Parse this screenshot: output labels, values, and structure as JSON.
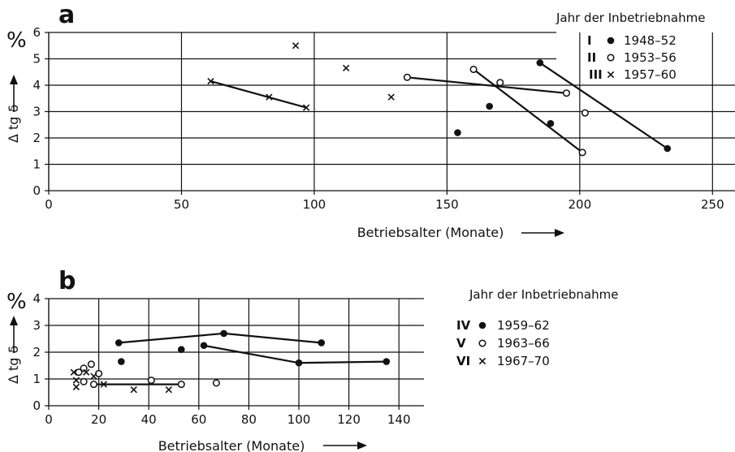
{
  "chart_data": [
    {
      "type": "scatter",
      "panel_label": "a",
      "xlabel": "Betriebsalter (Monate)",
      "ylabel": "Δ tg δ",
      "y_unit": "%",
      "xlim": [
        0,
        260
      ],
      "ylim": [
        0,
        6
      ],
      "x_ticks": [
        "0",
        "50",
        "100",
        "150",
        "200",
        "250"
      ],
      "y_ticks": [
        "0",
        "1",
        "2",
        "3",
        "4",
        "5",
        "6"
      ],
      "grid": true,
      "legend_title": "Jahr der Inbetriebnahme",
      "legend_position": "top-right",
      "series": [
        {
          "numeral": "I",
          "name": "1948–52",
          "marker": "filled-circle",
          "points": [
            [
              154,
              2.2
            ],
            [
              166,
              3.2
            ],
            [
              185,
              4.85
            ],
            [
              189,
              2.55
            ],
            [
              233,
              1.6
            ]
          ],
          "trend_lines": [
            [
              [
                185,
                4.85
              ],
              [
                233,
                1.6
              ]
            ]
          ]
        },
        {
          "numeral": "II",
          "name": "1953–56",
          "marker": "open-circle",
          "points": [
            [
              135,
              4.3
            ],
            [
              160,
              4.6
            ],
            [
              170,
              4.1
            ],
            [
              195,
              3.7
            ],
            [
              201,
              1.45
            ],
            [
              202,
              2.95
            ]
          ],
          "trend_lines": [
            [
              [
                135,
                4.3
              ],
              [
                195,
                3.7
              ]
            ],
            [
              [
                160,
                4.6
              ],
              [
                201,
                1.45
              ]
            ]
          ]
        },
        {
          "numeral": "III",
          "name": "1957–60",
          "marker": "cross",
          "points": [
            [
              61,
              4.15
            ],
            [
              83,
              3.55
            ],
            [
              93,
              5.5
            ],
            [
              97,
              3.15
            ],
            [
              112,
              4.65
            ],
            [
              129,
              3.55
            ]
          ],
          "trend_lines": [
            [
              [
                61,
                4.15
              ],
              [
                97,
                3.15
              ]
            ]
          ]
        }
      ]
    },
    {
      "type": "scatter",
      "panel_label": "b",
      "xlabel": "Betriebsalter (Monate)",
      "ylabel": "Δ tg δ",
      "y_unit": "%",
      "xlim": [
        0,
        150
      ],
      "ylim": [
        0,
        4
      ],
      "x_ticks": [
        "0",
        "20",
        "40",
        "60",
        "80",
        "100",
        "120",
        "140"
      ],
      "y_ticks": [
        "0",
        "1",
        "2",
        "3",
        "4"
      ],
      "grid": true,
      "legend_title": "Jahr der Inbetriebnahme",
      "legend_position": "right",
      "series": [
        {
          "numeral": "IV",
          "name": "1959–62",
          "marker": "filled-circle",
          "points": [
            [
              28,
              2.35
            ],
            [
              29,
              1.65
            ],
            [
              53,
              2.1
            ],
            [
              62,
              2.25
            ],
            [
              70,
              2.7
            ],
            [
              100,
              1.6
            ],
            [
              109,
              2.35
            ],
            [
              135,
              1.65
            ]
          ],
          "trend_lines": [
            [
              [
                28,
                2.35
              ],
              [
                70,
                2.7
              ],
              [
                109,
                2.35
              ]
            ],
            [
              [
                62,
                2.25
              ],
              [
                100,
                1.6
              ],
              [
                135,
                1.65
              ]
            ]
          ]
        },
        {
          "numeral": "V",
          "name": "1963–66",
          "marker": "open-circle",
          "points": [
            [
              12,
              1.25
            ],
            [
              14,
              0.9
            ],
            [
              14,
              1.4
            ],
            [
              17,
              1.55
            ],
            [
              18,
              0.8
            ],
            [
              20,
              1.2
            ],
            [
              41,
              0.95
            ],
            [
              53,
              0.8
            ],
            [
              67,
              0.85
            ]
          ],
          "trend_lines": [
            [
              [
                18,
                0.8
              ],
              [
                53,
                0.8
              ]
            ]
          ]
        },
        {
          "numeral": "VI",
          "name": "1967–70",
          "marker": "cross",
          "points": [
            [
              10,
              1.25
            ],
            [
              11,
              0.95
            ],
            [
              11,
              0.7
            ],
            [
              15,
              1.25
            ],
            [
              18,
              1.1
            ],
            [
              22,
              0.8
            ],
            [
              34,
              0.6
            ],
            [
              48,
              0.6
            ]
          ],
          "trend_lines": []
        }
      ]
    }
  ]
}
